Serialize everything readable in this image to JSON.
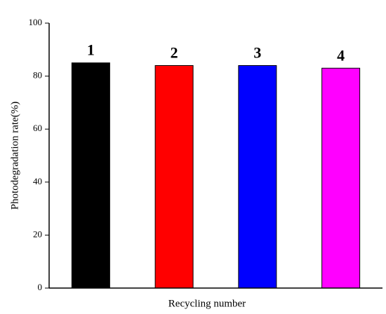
{
  "chart_data": {
    "type": "bar",
    "x_label": "Recycling number",
    "y_label": "Photodegradation rate(%)",
    "categories": [
      "1",
      "2",
      "3",
      "4"
    ],
    "values": [
      85,
      84,
      84,
      83
    ],
    "colors": [
      "#000000",
      "#ff0000",
      "#0000ff",
      "#ff00ff"
    ],
    "ylim": [
      0,
      100
    ],
    "yticks": [
      0,
      20,
      40,
      60,
      80,
      100
    ]
  }
}
